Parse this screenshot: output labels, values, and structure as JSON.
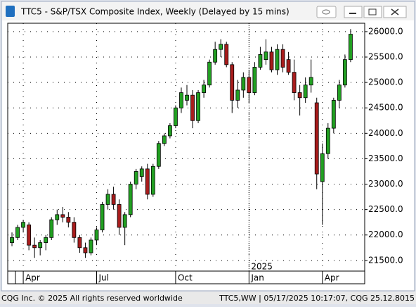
{
  "window": {
    "title": "TTC5 - S&P/TSX Composite Index, Weekly (Delayed by 15 mins)"
  },
  "footer": {
    "left": "CQG Inc. © 2025 All rights reserved worldwide",
    "right": "TTC5,WW | 05/17/2025 10:17:07, CQG 25.12.8015"
  },
  "chart_data": {
    "type": "candlestick",
    "up_color": "#22a022",
    "down_color": "#a81c1c",
    "open": [
      21850,
      21950,
      22150,
      22200,
      21800,
      21750,
      21850,
      21950,
      22300,
      22400,
      22350,
      22250,
      21950,
      21750,
      21650,
      21900,
      22100,
      22600,
      22800,
      22600,
      22150,
      22400,
      23000,
      23150,
      23300,
      22800,
      23350,
      23800,
      23950,
      24150,
      24500,
      24650,
      24750,
      24250,
      24800,
      24950,
      25400,
      25650,
      25750,
      25350,
      24650,
      24850,
      25100,
      24800,
      25300,
      25450,
      25600,
      25250,
      25650,
      25450,
      25200,
      24800,
      24700,
      24950,
      24600,
      23050,
      23600,
      24100,
      24650,
      24950,
      25450
    ],
    "high": [
      22050,
      22200,
      22300,
      22250,
      21950,
      21900,
      22000,
      22350,
      22500,
      22550,
      22450,
      22350,
      22000,
      21850,
      21950,
      22150,
      22650,
      22900,
      22950,
      22700,
      22450,
      23050,
      23300,
      23350,
      23400,
      23400,
      23850,
      24000,
      24200,
      24550,
      24900,
      24950,
      24850,
      24850,
      25050,
      25450,
      25800,
      25850,
      25800,
      25400,
      25050,
      25200,
      25250,
      25400,
      25700,
      25850,
      25700,
      25750,
      25750,
      25600,
      25450,
      24950,
      25100,
      25450,
      24700,
      23800,
      24200,
      24700,
      25050,
      25550,
      26050
    ],
    "low": [
      21780,
      21900,
      22050,
      21700,
      21550,
      21600,
      21700,
      21900,
      22200,
      22250,
      22150,
      21850,
      21650,
      21550,
      21600,
      21800,
      22050,
      22500,
      22500,
      22000,
      21800,
      22350,
      22900,
      23050,
      22700,
      22750,
      23300,
      23750,
      23900,
      24100,
      24400,
      24550,
      24100,
      24200,
      24700,
      24900,
      25350,
      25500,
      25300,
      24400,
      24500,
      24700,
      24600,
      24750,
      25250,
      25350,
      25200,
      25150,
      25200,
      25150,
      24650,
      24350,
      24600,
      24800,
      22900,
      22200,
      23500,
      24000,
      24500,
      24900,
      25400
    ],
    "close": [
      21950,
      22150,
      22250,
      21800,
      21750,
      21850,
      21950,
      22300,
      22400,
      22350,
      22250,
      21950,
      21750,
      21650,
      21900,
      22100,
      22600,
      22800,
      22600,
      22150,
      22400,
      23000,
      23250,
      23300,
      22800,
      23350,
      23800,
      23950,
      24150,
      24500,
      24800,
      24750,
      24250,
      24800,
      24950,
      25400,
      25650,
      25750,
      25350,
      24650,
      24850,
      25100,
      24800,
      25300,
      25550,
      25600,
      25250,
      25650,
      25300,
      25200,
      24800,
      24700,
      24950,
      25100,
      23200,
      23600,
      24100,
      24650,
      24950,
      25450,
      25950
    ],
    "xlim": [
      -0.75,
      62.5
    ],
    "xticks": [
      {
        "value": 2,
        "label": "Apr"
      },
      {
        "value": 15,
        "label": "Jul"
      },
      {
        "value": 29,
        "label": "Oct"
      },
      {
        "value": 42,
        "label": "Jan"
      },
      {
        "value": 55,
        "label": "Apr"
      }
    ],
    "year_label": {
      "value": 42,
      "label": "2025"
    },
    "ylim": [
      21290,
      26165
    ],
    "yticks": [
      {
        "value": 21500,
        "label": "21500.0"
      },
      {
        "value": 22000,
        "label": "22000.0"
      },
      {
        "value": 22500,
        "label": "22500.0"
      },
      {
        "value": 23000,
        "label": "23000.0"
      },
      {
        "value": 23500,
        "label": "23500.0"
      },
      {
        "value": 24000,
        "label": "24000.0"
      },
      {
        "value": 24500,
        "label": "24500.0"
      },
      {
        "value": 25000,
        "label": "25000.0"
      },
      {
        "value": 25500,
        "label": "25500.0"
      },
      {
        "value": 26000,
        "label": "26000.0"
      }
    ],
    "grid": true
  }
}
